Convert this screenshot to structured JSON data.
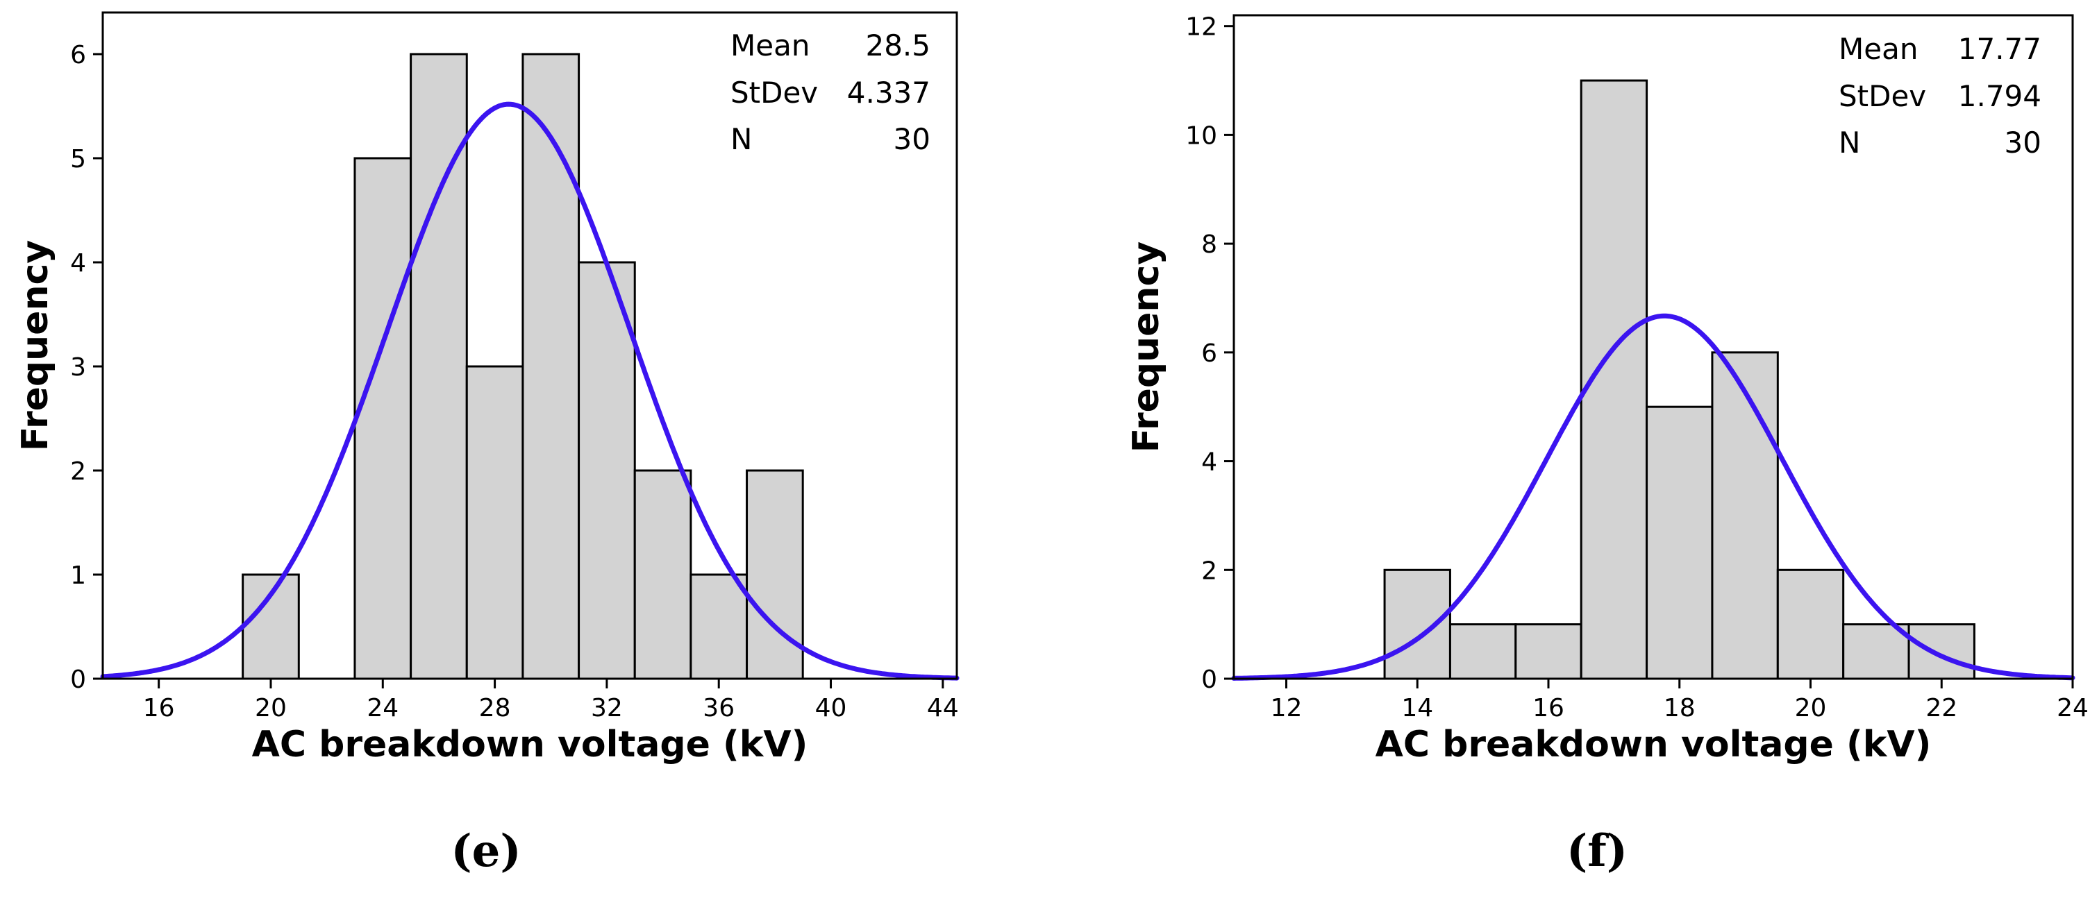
{
  "colors": {
    "bar_fill": "#d3d3d3",
    "curve": "#3b14f0",
    "frame": "#000000"
  },
  "chart_data": [
    {
      "type": "bar",
      "subtype": "histogram-with-normal-fit",
      "panel_label": "(e)",
      "xlabel": "AC breakdown voltage (kV)",
      "ylabel": "Frequency",
      "xlim": [
        14,
        44.5
      ],
      "ylim": [
        0,
        6.4
      ],
      "xticks": [
        16,
        20,
        24,
        28,
        32,
        36,
        40,
        44
      ],
      "yticks": [
        0,
        1,
        2,
        3,
        4,
        5,
        6
      ],
      "bins": [
        {
          "start": 19,
          "end": 21,
          "count": 1
        },
        {
          "start": 23,
          "end": 25,
          "count": 5
        },
        {
          "start": 25,
          "end": 27,
          "count": 6
        },
        {
          "start": 27,
          "end": 29,
          "count": 3
        },
        {
          "start": 29,
          "end": 31,
          "count": 6
        },
        {
          "start": 31,
          "end": 33,
          "count": 4
        },
        {
          "start": 33,
          "end": 35,
          "count": 2
        },
        {
          "start": 35,
          "end": 37,
          "count": 1
        },
        {
          "start": 37,
          "end": 39,
          "count": 2
        }
      ],
      "bin_width": 2,
      "stats": [
        {
          "label": "Mean",
          "value": "28.5"
        },
        {
          "label": "StDev",
          "value": "4.337"
        },
        {
          "label": "N",
          "value": "30"
        }
      ],
      "fit": {
        "mean": 28.5,
        "stdev": 4.337,
        "n": 30
      }
    },
    {
      "type": "bar",
      "subtype": "histogram-with-normal-fit",
      "panel_label": "(f)",
      "xlabel": "AC breakdown voltage (kV)",
      "ylabel": "Frequency",
      "xlim": [
        11.2,
        24
      ],
      "ylim": [
        0,
        12.2
      ],
      "xticks": [
        12,
        14,
        16,
        18,
        20,
        22,
        24
      ],
      "yticks": [
        0,
        2,
        4,
        6,
        8,
        10,
        12
      ],
      "bins": [
        {
          "start": 13.5,
          "end": 14.5,
          "count": 2
        },
        {
          "start": 14.5,
          "end": 15.5,
          "count": 1
        },
        {
          "start": 15.5,
          "end": 16.5,
          "count": 1
        },
        {
          "start": 16.5,
          "end": 17.5,
          "count": 11
        },
        {
          "start": 17.5,
          "end": 18.5,
          "count": 5
        },
        {
          "start": 18.5,
          "end": 19.5,
          "count": 6
        },
        {
          "start": 19.5,
          "end": 20.5,
          "count": 2
        },
        {
          "start": 20.5,
          "end": 21.5,
          "count": 1
        },
        {
          "start": 21.5,
          "end": 22.5,
          "count": 1
        }
      ],
      "bin_width": 1,
      "stats": [
        {
          "label": "Mean",
          "value": "17.77"
        },
        {
          "label": "StDev",
          "value": "1.794"
        },
        {
          "label": "N",
          "value": "30"
        }
      ],
      "fit": {
        "mean": 17.77,
        "stdev": 1.794,
        "n": 30
      }
    }
  ]
}
